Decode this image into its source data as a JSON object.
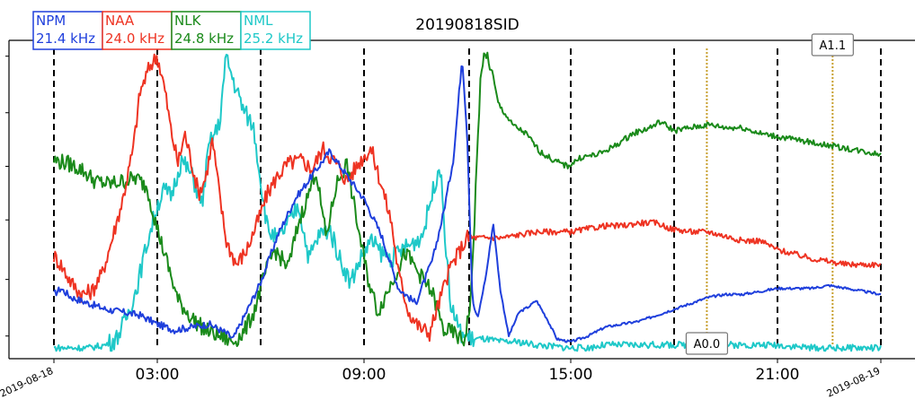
{
  "chart_data": {
    "type": "line",
    "title": "20190818SID",
    "xlabel": "",
    "ylabel": "",
    "x_unit": "hours since 2019-08-18 00:00 UTC",
    "xlim": [
      0,
      24
    ],
    "ylim": [
      0,
      1
    ],
    "x_ticks": [
      {
        "x": 0,
        "label": "2019-08-18",
        "style": "date"
      },
      {
        "x": 3,
        "label": "03:00",
        "style": "time"
      },
      {
        "x": 9,
        "label": "09:00",
        "style": "time"
      },
      {
        "x": 15,
        "label": "15:00",
        "style": "time"
      },
      {
        "x": 21,
        "label": "21:00",
        "style": "time"
      },
      {
        "x": 24,
        "label": "2019-08-19",
        "style": "date"
      }
    ],
    "y_ticks": [
      0.04,
      0.23,
      0.43,
      0.61,
      0.79,
      0.98
    ],
    "vlines_dashed": [
      0,
      3,
      6,
      9,
      12.05,
      15,
      18,
      21,
      24
    ],
    "vlines_dotted": [
      18.95,
      22.6
    ],
    "grid": false,
    "legend_position": "top-left",
    "series": [
      {
        "name": "NPM",
        "freq": "21.4 kHz",
        "color": "#1f3fdc",
        "points": [
          [
            0,
            0.18
          ],
          [
            0.2,
            0.2
          ],
          [
            0.5,
            0.17
          ],
          [
            1,
            0.15
          ],
          [
            1.5,
            0.13
          ],
          [
            2,
            0.12
          ],
          [
            2.5,
            0.11
          ],
          [
            3,
            0.08
          ],
          [
            3.5,
            0.06
          ],
          [
            4,
            0.07
          ],
          [
            4.5,
            0.08
          ],
          [
            5,
            0.05
          ],
          [
            5.2,
            0.03
          ],
          [
            5.5,
            0.1
          ],
          [
            6,
            0.22
          ],
          [
            6.5,
            0.38
          ],
          [
            7,
            0.5
          ],
          [
            7.5,
            0.58
          ],
          [
            8,
            0.66
          ],
          [
            8.5,
            0.58
          ],
          [
            9,
            0.5
          ],
          [
            9.5,
            0.38
          ],
          [
            10,
            0.2
          ],
          [
            10.5,
            0.15
          ],
          [
            11,
            0.3
          ],
          [
            11.3,
            0.45
          ],
          [
            11.6,
            0.64
          ],
          [
            11.85,
            0.98
          ],
          [
            12.0,
            0.7
          ],
          [
            12.15,
            0.15
          ],
          [
            12.3,
            0.1
          ],
          [
            12.55,
            0.25
          ],
          [
            12.75,
            0.42
          ],
          [
            12.95,
            0.2
          ],
          [
            13.2,
            0.04
          ],
          [
            13.5,
            0.12
          ],
          [
            13.8,
            0.14
          ],
          [
            14.0,
            0.16
          ],
          [
            14.3,
            0.1
          ],
          [
            14.6,
            0.03
          ],
          [
            15,
            0.02
          ],
          [
            15.5,
            0.04
          ],
          [
            16,
            0.07
          ],
          [
            16.5,
            0.08
          ],
          [
            17,
            0.09
          ],
          [
            17.5,
            0.11
          ],
          [
            18,
            0.13
          ],
          [
            18.5,
            0.15
          ],
          [
            19,
            0.17
          ],
          [
            19.5,
            0.18
          ],
          [
            20,
            0.18
          ],
          [
            20.5,
            0.19
          ],
          [
            21,
            0.2
          ],
          [
            21.5,
            0.2
          ],
          [
            22,
            0.2
          ],
          [
            22.5,
            0.21
          ],
          [
            23,
            0.2
          ],
          [
            23.5,
            0.19
          ],
          [
            24,
            0.18
          ]
        ]
      },
      {
        "name": "NAA",
        "freq": "24.0 kHz",
        "color": "#ee3322",
        "points": [
          [
            0,
            0.31
          ],
          [
            0.2,
            0.28
          ],
          [
            0.5,
            0.22
          ],
          [
            0.8,
            0.18
          ],
          [
            1.1,
            0.19
          ],
          [
            1.4,
            0.25
          ],
          [
            1.7,
            0.37
          ],
          [
            2,
            0.5
          ],
          [
            2.3,
            0.67
          ],
          [
            2.5,
            0.86
          ],
          [
            2.8,
            0.95
          ],
          [
            3.0,
            0.98
          ],
          [
            3.2,
            0.88
          ],
          [
            3.4,
            0.73
          ],
          [
            3.6,
            0.62
          ],
          [
            3.8,
            0.72
          ],
          [
            4.0,
            0.62
          ],
          [
            4.2,
            0.52
          ],
          [
            4.4,
            0.57
          ],
          [
            4.6,
            0.7
          ],
          [
            4.8,
            0.52
          ],
          [
            5.0,
            0.36
          ],
          [
            5.3,
            0.28
          ],
          [
            5.6,
            0.33
          ],
          [
            5.9,
            0.42
          ],
          [
            6.2,
            0.52
          ],
          [
            6.5,
            0.58
          ],
          [
            6.8,
            0.62
          ],
          [
            7.2,
            0.63
          ],
          [
            7.5,
            0.6
          ],
          [
            7.8,
            0.67
          ],
          [
            8.2,
            0.62
          ],
          [
            8.5,
            0.56
          ],
          [
            8.9,
            0.63
          ],
          [
            9.2,
            0.67
          ],
          [
            9.5,
            0.55
          ],
          [
            9.8,
            0.42
          ],
          [
            10.0,
            0.25
          ],
          [
            10.3,
            0.12
          ],
          [
            10.6,
            0.07
          ],
          [
            10.9,
            0.05
          ],
          [
            11.2,
            0.16
          ],
          [
            11.5,
            0.27
          ],
          [
            12.0,
            0.37
          ],
          [
            12.5,
            0.37
          ],
          [
            13,
            0.37
          ],
          [
            14,
            0.39
          ],
          [
            15,
            0.39
          ],
          [
            15.5,
            0.4
          ],
          [
            16,
            0.41
          ],
          [
            16.5,
            0.41
          ],
          [
            17,
            0.42
          ],
          [
            17.5,
            0.42
          ],
          [
            17.9,
            0.4
          ],
          [
            18.5,
            0.39
          ],
          [
            19,
            0.39
          ],
          [
            20,
            0.36
          ],
          [
            20.5,
            0.36
          ],
          [
            21,
            0.33
          ],
          [
            22,
            0.3
          ],
          [
            22.5,
            0.29
          ],
          [
            23,
            0.28
          ],
          [
            23.5,
            0.28
          ],
          [
            24,
            0.28
          ]
        ]
      },
      {
        "name": "NLK",
        "freq": "24.8 kHz",
        "color": "#1a8a1a",
        "points": [
          [
            0,
            0.63
          ],
          [
            0.4,
            0.62
          ],
          [
            0.8,
            0.6
          ],
          [
            1.2,
            0.56
          ],
          [
            1.6,
            0.55
          ],
          [
            2.0,
            0.56
          ],
          [
            2.4,
            0.57
          ],
          [
            2.7,
            0.54
          ],
          [
            3.0,
            0.4
          ],
          [
            3.3,
            0.28
          ],
          [
            3.6,
            0.16
          ],
          [
            4.0,
            0.1
          ],
          [
            4.4,
            0.06
          ],
          [
            4.8,
            0.04
          ],
          [
            5.0,
            0.03
          ],
          [
            5.2,
            0.02
          ],
          [
            5.5,
            0.05
          ],
          [
            5.8,
            0.12
          ],
          [
            6.1,
            0.24
          ],
          [
            6.4,
            0.33
          ],
          [
            6.8,
            0.27
          ],
          [
            7.1,
            0.42
          ],
          [
            7.4,
            0.52
          ],
          [
            7.6,
            0.6
          ],
          [
            7.9,
            0.37
          ],
          [
            8.2,
            0.55
          ],
          [
            8.5,
            0.62
          ],
          [
            8.8,
            0.42
          ],
          [
            9.1,
            0.24
          ],
          [
            9.4,
            0.12
          ],
          [
            9.8,
            0.22
          ],
          [
            10.2,
            0.32
          ],
          [
            10.6,
            0.25
          ],
          [
            11.0,
            0.18
          ],
          [
            11.3,
            0.06
          ],
          [
            11.6,
            0.05
          ],
          [
            11.9,
            0.02
          ],
          [
            12.1,
            0.16
          ],
          [
            12.4,
            0.95
          ],
          [
            12.6,
            0.98
          ],
          [
            12.9,
            0.82
          ],
          [
            13.3,
            0.75
          ],
          [
            13.7,
            0.72
          ],
          [
            14.1,
            0.66
          ],
          [
            14.5,
            0.63
          ],
          [
            14.9,
            0.61
          ],
          [
            15.3,
            0.64
          ],
          [
            15.8,
            0.65
          ],
          [
            16.3,
            0.68
          ],
          [
            16.8,
            0.72
          ],
          [
            17.3,
            0.74
          ],
          [
            17.6,
            0.76
          ],
          [
            18,
            0.73
          ],
          [
            18.5,
            0.74
          ],
          [
            19,
            0.75
          ],
          [
            19.5,
            0.74
          ],
          [
            20,
            0.74
          ],
          [
            20.5,
            0.72
          ],
          [
            21,
            0.71
          ],
          [
            21.5,
            0.7
          ],
          [
            22,
            0.69
          ],
          [
            22.5,
            0.68
          ],
          [
            23,
            0.67
          ],
          [
            23.5,
            0.66
          ],
          [
            24,
            0.65
          ]
        ]
      },
      {
        "name": "NML",
        "freq": "25.2 kHz",
        "color": "#1ec8c8",
        "points": [
          [
            0,
            0.0
          ],
          [
            0.5,
            0.0
          ],
          [
            1,
            0.0
          ],
          [
            1.5,
            0.01
          ],
          [
            1.8,
            0.03
          ],
          [
            2.1,
            0.1
          ],
          [
            2.4,
            0.2
          ],
          [
            2.7,
            0.35
          ],
          [
            3.0,
            0.48
          ],
          [
            3.2,
            0.53
          ],
          [
            3.4,
            0.51
          ],
          [
            3.7,
            0.63
          ],
          [
            4.0,
            0.58
          ],
          [
            4.3,
            0.48
          ],
          [
            4.5,
            0.68
          ],
          [
            4.8,
            0.75
          ],
          [
            5.0,
            0.98
          ],
          [
            5.2,
            0.9
          ],
          [
            5.5,
            0.8
          ],
          [
            5.8,
            0.74
          ],
          [
            6.0,
            0.56
          ],
          [
            6.2,
            0.4
          ],
          [
            6.5,
            0.36
          ],
          [
            6.8,
            0.42
          ],
          [
            7.1,
            0.48
          ],
          [
            7.4,
            0.3
          ],
          [
            7.7,
            0.38
          ],
          [
            8.0,
            0.4
          ],
          [
            8.3,
            0.3
          ],
          [
            8.6,
            0.22
          ],
          [
            8.9,
            0.3
          ],
          [
            9.2,
            0.36
          ],
          [
            9.5,
            0.32
          ],
          [
            9.8,
            0.3
          ],
          [
            10.1,
            0.33
          ],
          [
            10.4,
            0.35
          ],
          [
            10.7,
            0.38
          ],
          [
            10.9,
            0.48
          ],
          [
            11.2,
            0.62
          ],
          [
            11.5,
            0.15
          ],
          [
            11.8,
            0.05
          ],
          [
            12.1,
            0.03
          ],
          [
            12.5,
            0.03
          ],
          [
            13,
            0.02
          ],
          [
            13.5,
            0.02
          ],
          [
            14,
            0.01
          ],
          [
            15,
            0.0
          ],
          [
            15.5,
            0.0
          ],
          [
            16,
            0.01
          ],
          [
            17,
            0.01
          ],
          [
            18,
            0.01
          ],
          [
            19,
            0.01
          ],
          [
            20,
            0.01
          ],
          [
            21,
            0.01
          ],
          [
            22,
            0.0
          ],
          [
            23,
            0.0
          ],
          [
            24,
            0.0
          ]
        ]
      }
    ],
    "annotations": [
      {
        "text": "A1.1",
        "x": 22.6,
        "y_pos": "top"
      },
      {
        "text": "A0.0",
        "x": 18.95,
        "y_pos": "bottom"
      }
    ],
    "dotted_line_color": "#c8a030",
    "noise_amplitude": [
      0.012,
      0.028,
      0.028,
      0.032
    ]
  }
}
